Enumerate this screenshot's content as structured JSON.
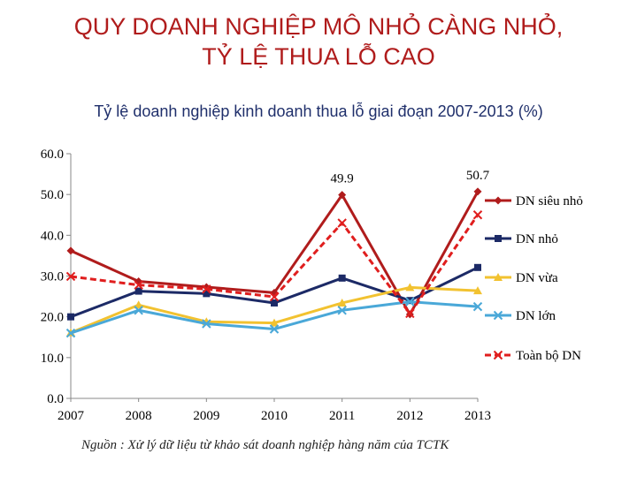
{
  "header": {
    "title_line1": "QUY DOANH NGHIỆP MÔ NHỎ CÀNG NHỎ,",
    "title_line2": "TỶ LỆ THUA LỖ CAO"
  },
  "footer": {
    "source": "Nguồn : Xử lý dữ liệu từ khảo sát doanh nghiệp hàng năm của TCTK"
  },
  "chart_data": {
    "type": "line",
    "title": "Tỷ lệ doanh nghiệp kinh doanh thua lỗ giai đoạn 2007-2013 (%)",
    "xlabel": "",
    "ylabel": "",
    "categories": [
      "2007",
      "2008",
      "2009",
      "2010",
      "2011",
      "2012",
      "2013"
    ],
    "ylim": [
      0,
      60
    ],
    "yticks": [
      "0.0",
      "10.0",
      "20.0",
      "30.0",
      "40.0",
      "50.0",
      "60.0"
    ],
    "grid": false,
    "legend_position": "right",
    "series": [
      {
        "name": "DN siêu nhỏ",
        "color": "#b01c1c",
        "marker": "diamond",
        "dash": false,
        "values": [
          36.2,
          28.7,
          27.3,
          25.9,
          49.9,
          20.6,
          50.7
        ]
      },
      {
        "name": "DN nhỏ",
        "color": "#1c2a66",
        "marker": "square",
        "dash": false,
        "values": [
          20.0,
          26.3,
          25.7,
          23.4,
          29.5,
          24.0,
          32.1
        ]
      },
      {
        "name": "DN vừa",
        "color": "#f2c230",
        "marker": "triangle",
        "dash": false,
        "values": [
          16.1,
          22.9,
          18.8,
          18.5,
          23.4,
          27.2,
          26.4
        ]
      },
      {
        "name": "DN lớn",
        "color": "#4aa8d8",
        "marker": "x",
        "dash": false,
        "values": [
          16.0,
          21.6,
          18.3,
          17.0,
          21.6,
          23.7,
          22.5
        ]
      },
      {
        "name": "Toàn bộ DN",
        "color": "#e01e1e",
        "marker": "x",
        "dash": true,
        "values": [
          29.9,
          27.8,
          26.8,
          24.9,
          43.0,
          20.8,
          45.0
        ]
      }
    ],
    "data_labels": [
      {
        "series": 0,
        "index": 4,
        "text": "49.9"
      },
      {
        "series": 0,
        "index": 6,
        "text": "50.7"
      }
    ]
  }
}
